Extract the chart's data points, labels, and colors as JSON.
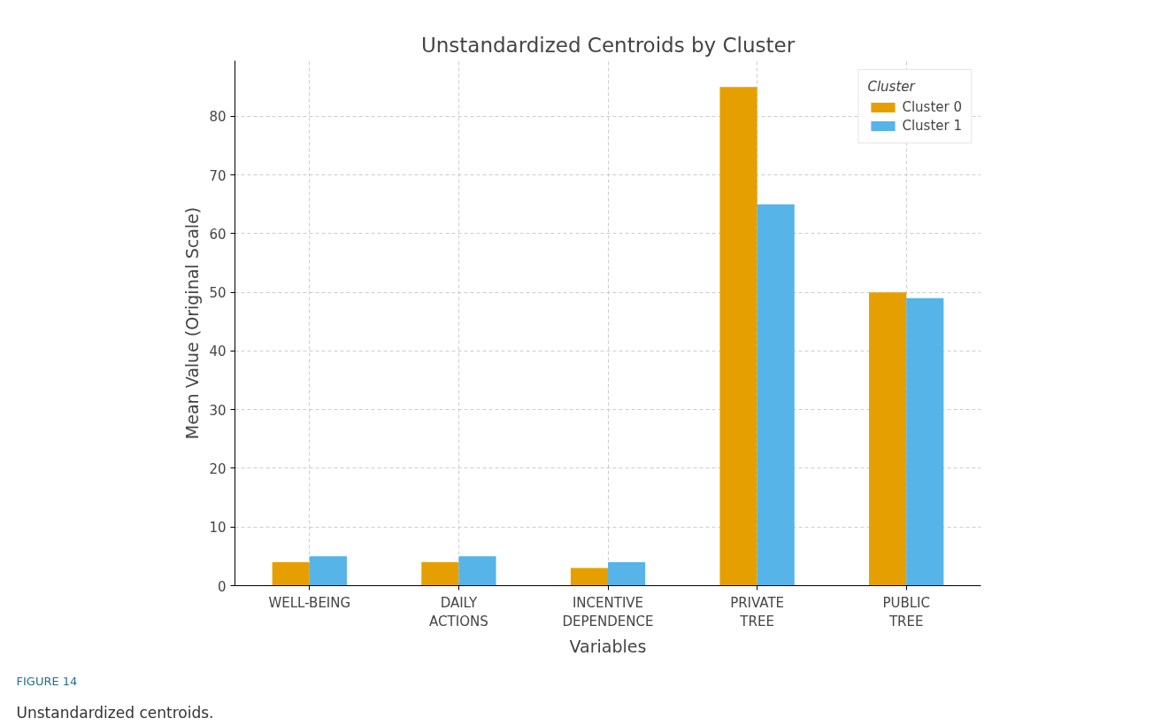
{
  "chart_data": {
    "type": "bar",
    "title": "Unstandardized Centroids by Cluster",
    "xlabel": "Variables",
    "ylabel": "Mean Value (Original Scale)",
    "legend_title": "Cluster",
    "categories": [
      "WELL-BEING",
      "DAILY\nACTIONS",
      "INCENTIVE\nDEPENDENCE",
      "PRIVATE\nTREE",
      "PUBLIC\nTREE"
    ],
    "series": [
      {
        "name": "Cluster 0",
        "color": "#e69f00",
        "values": [
          4,
          4,
          3,
          85,
          50
        ]
      },
      {
        "name": "Cluster 1",
        "color": "#56b4e9",
        "values": [
          5,
          5,
          4,
          65,
          49
        ]
      }
    ],
    "ylim": [
      0,
      89.5
    ],
    "yticks": [
      0,
      10,
      20,
      30,
      40,
      50,
      60,
      70,
      80
    ],
    "grid": true,
    "legend": "top right",
    "annotations": [
      "FIGURE 14",
      "Unstandardized centroids."
    ]
  }
}
